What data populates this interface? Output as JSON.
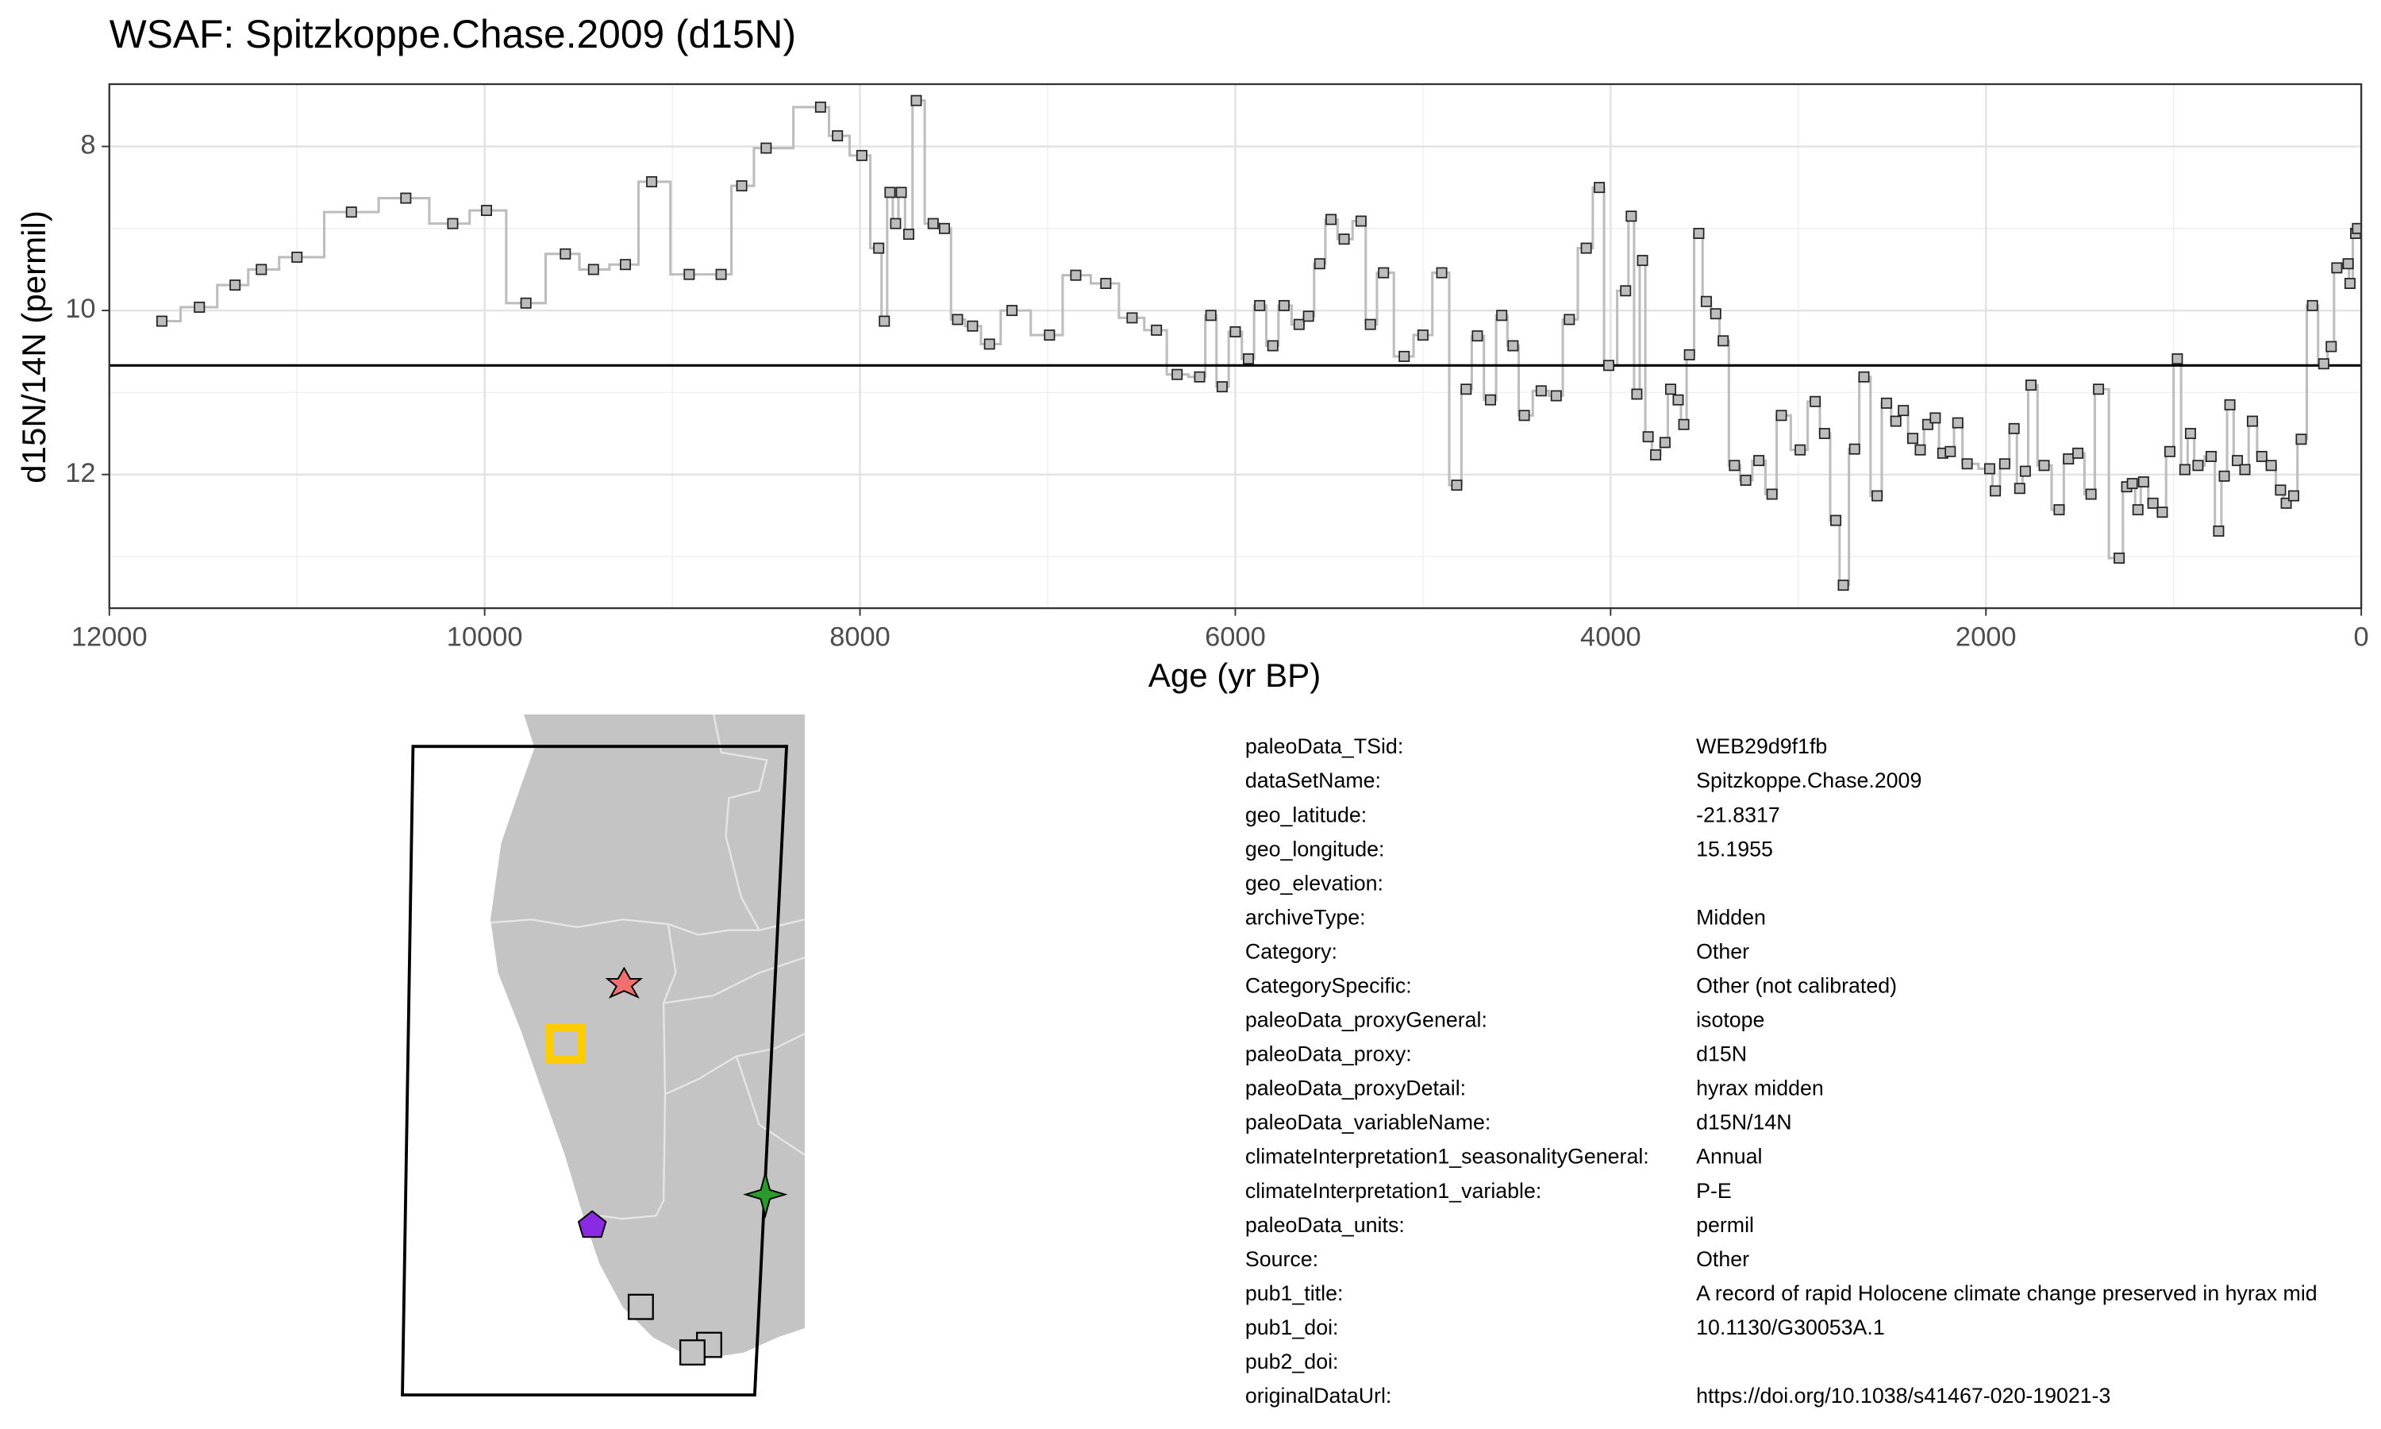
{
  "chart_data": {
    "type": "step",
    "title": "WSAF: Spitzkoppe.Chase.2009 (d15N)",
    "xlabel": "Age (yr BP)",
    "ylabel": "d15N/14N (permil)",
    "xlim": [
      12000,
      0
    ],
    "ylim": [
      13.63,
      7.24
    ],
    "xticks": [
      12000,
      10000,
      8000,
      6000,
      4000,
      2000,
      0
    ],
    "yticks": [
      8,
      10,
      12
    ],
    "x_minor_ticks": [
      11000,
      9000,
      7000,
      5000,
      3000,
      1000
    ],
    "y_minor_ticks": [
      9,
      11,
      13
    ],
    "grid": true,
    "mean_line": 10.67,
    "x": [
      11720,
      11520,
      11330,
      11190,
      11000,
      10710,
      10420,
      10170,
      9990,
      9780,
      9570,
      9420,
      9250,
      9110,
      8910,
      8740,
      8630,
      8500,
      8210,
      8120,
      7990,
      7900,
      7870,
      7840,
      7810,
      7780,
      7740,
      7700,
      7610,
      7550,
      7480,
      7400,
      7310,
      7190,
      6990,
      6850,
      6690,
      6550,
      6420,
      6310,
      6190,
      6130,
      6070,
      6000,
      5930,
      5870,
      5800,
      5740,
      5660,
      5610,
      5550,
      5490,
      5420,
      5330,
      5280,
      5210,
      5100,
      5000,
      4900,
      4820,
      4770,
      4710,
      4640,
      4580,
      4520,
      4460,
      4370,
      4290,
      4220,
      4130,
      4060,
      4010,
      3920,
      3890,
      3860,
      3830,
      3800,
      3760,
      3710,
      3680,
      3640,
      3610,
      3580,
      3530,
      3490,
      3440,
      3400,
      3340,
      3280,
      3210,
      3140,
      3090,
      2990,
      2910,
      2860,
      2800,
      2760,
      2700,
      2650,
      2580,
      2530,
      2480,
      2440,
      2390,
      2350,
      2310,
      2270,
      2230,
      2190,
      2150,
      2100,
      1980,
      1950,
      1900,
      1850,
      1820,
      1790,
      1760,
      1690,
      1610,
      1560,
      1510,
      1440,
      1400,
      1290,
      1250,
      1220,
      1190,
      1160,
      1110,
      1060,
      1020,
      980,
      940,
      910,
      870,
      800,
      760,
      730,
      700,
      660,
      620,
      580,
      530,
      480,
      430,
      400,
      360,
      320,
      260,
      200,
      160,
      130,
      70,
      60,
      30,
      20
    ],
    "series": [
      {
        "color": "#bdbdbd",
        "values": [
          10.13,
          9.96,
          9.69,
          9.5,
          9.35,
          8.8,
          8.63,
          8.94,
          8.78,
          9.91,
          9.31,
          9.5,
          9.44,
          8.43,
          9.56,
          9.56,
          8.48,
          8.02,
          7.52,
          7.87,
          8.11,
          9.24,
          10.13,
          8.56,
          8.94,
          8.56,
          9.07,
          7.44,
          8.94,
          9,
          10.11,
          10.19,
          10.41,
          10,
          10.3,
          9.57,
          9.67,
          10.09,
          10.24,
          10.78,
          10.81,
          10.06,
          10.93,
          10.26,
          10.59,
          9.94,
          10.43,
          9.94,
          10.17,
          10.07,
          9.43,
          8.89,
          9.13,
          8.91,
          10.17,
          9.54,
          10.56,
          10.3,
          9.54,
          12.13,
          10.96,
          10.31,
          11.09,
          10.06,
          10.43,
          11.28,
          10.98,
          11.04,
          10.11,
          9.24,
          8.5,
          10.67,
          9.76,
          8.85,
          11.02,
          9.39,
          11.54,
          11.76,
          11.61,
          10.96,
          11.09,
          11.39,
          10.54,
          9.06,
          9.89,
          10.04,
          10.37,
          11.89,
          12.07,
          11.83,
          12.24,
          11.28,
          11.7,
          11.11,
          11.5,
          12.56,
          13.35,
          11.69,
          10.81,
          12.26,
          11.13,
          11.35,
          11.22,
          11.56,
          11.7,
          11.39,
          11.31,
          11.74,
          11.72,
          11.37,
          11.87,
          11.93,
          12.2,
          11.87,
          11.44,
          12.17,
          11.96,
          10.91,
          11.89,
          12.43,
          11.81,
          11.74,
          12.24,
          10.96,
          13.02,
          12.15,
          12.11,
          12.43,
          12.09,
          12.35,
          12.46,
          11.72,
          10.59,
          11.94,
          11.5,
          11.89,
          11.78,
          12.69,
          12.02,
          11.15,
          11.83,
          11.94,
          11.35,
          11.78,
          11.89,
          12.19,
          12.35,
          12.26,
          11.57,
          9.94,
          10.65,
          10.44,
          9.48,
          9.43,
          9.67,
          9.06,
          9
        ]
      }
    ]
  },
  "metadata_table": {
    "rows": [
      [
        "paleoData_TSid:",
        "WEB29d9f1fb"
      ],
      [
        "dataSetName:",
        "Spitzkoppe.Chase.2009"
      ],
      [
        "geo_latitude:",
        "-21.8317"
      ],
      [
        "geo_longitude:",
        "15.1955"
      ],
      [
        "geo_elevation:"
      ],
      [
        "archiveType:",
        "Midden"
      ],
      [
        "Category:",
        "Other"
      ],
      [
        "CategorySpecific:",
        "Other (not calibrated)"
      ],
      [
        "paleoData_proxyGeneral:",
        "isotope"
      ],
      [
        "paleoData_proxy:",
        "d15N"
      ],
      [
        "paleoData_proxyDetail:",
        "hyrax midden"
      ],
      [
        "paleoData_variableName:",
        "d15N/14N"
      ],
      [
        "climateInterpretation1_seasonalityGeneral:",
        "Annual"
      ],
      [
        "climateInterpretation1_variable:",
        "P-E"
      ],
      [
        "paleoData_units:",
        "permil"
      ],
      [
        "Source:",
        "Other"
      ],
      [
        "pub1_title:",
        "A record of rapid Holocene climate change preserved in hyrax mid"
      ],
      [
        "pub1_doi:",
        "10.1130/G30053A.1"
      ],
      [
        "pub2_doi:"
      ],
      [
        "originalDataUrl:",
        "https://doi.org/10.1038/s41467-020-19021-3"
      ]
    ]
  }
}
